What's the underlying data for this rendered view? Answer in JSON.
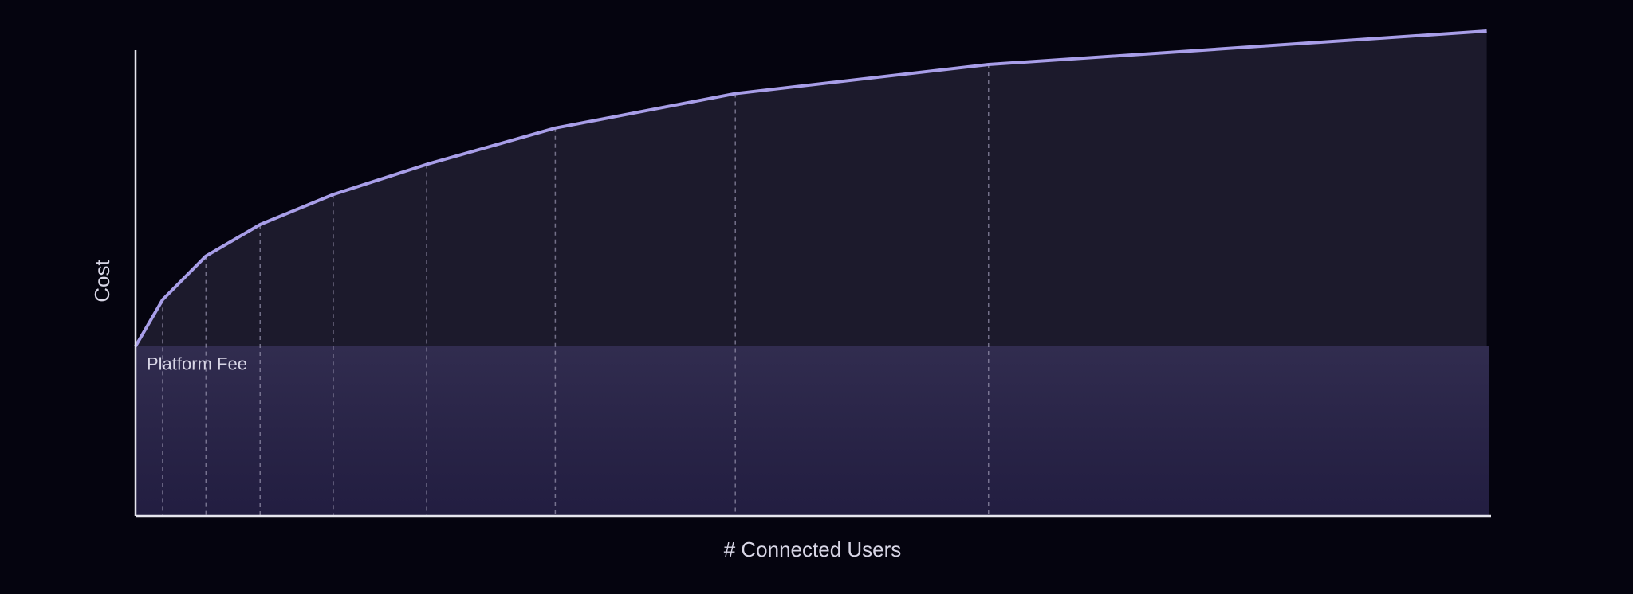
{
  "chart_data": {
    "type": "line",
    "xlabel": "# Connected Users",
    "ylabel": "Cost",
    "x": [
      0,
      2,
      5.2,
      9.2,
      14.6,
      21.5,
      31,
      44.3,
      63,
      99.8
    ],
    "values": [
      35,
      44.6,
      53.6,
      60.1,
      66.3,
      72.5,
      80,
      87.1,
      93.1,
      100
    ],
    "xlim": [
      0,
      100
    ],
    "ylim": [
      0,
      100
    ],
    "color": "#a89ee8",
    "area_color": "#1c1a2c",
    "platform_fee": {
      "label": "Platform Fee",
      "value": 35,
      "color": "#241f44"
    }
  }
}
